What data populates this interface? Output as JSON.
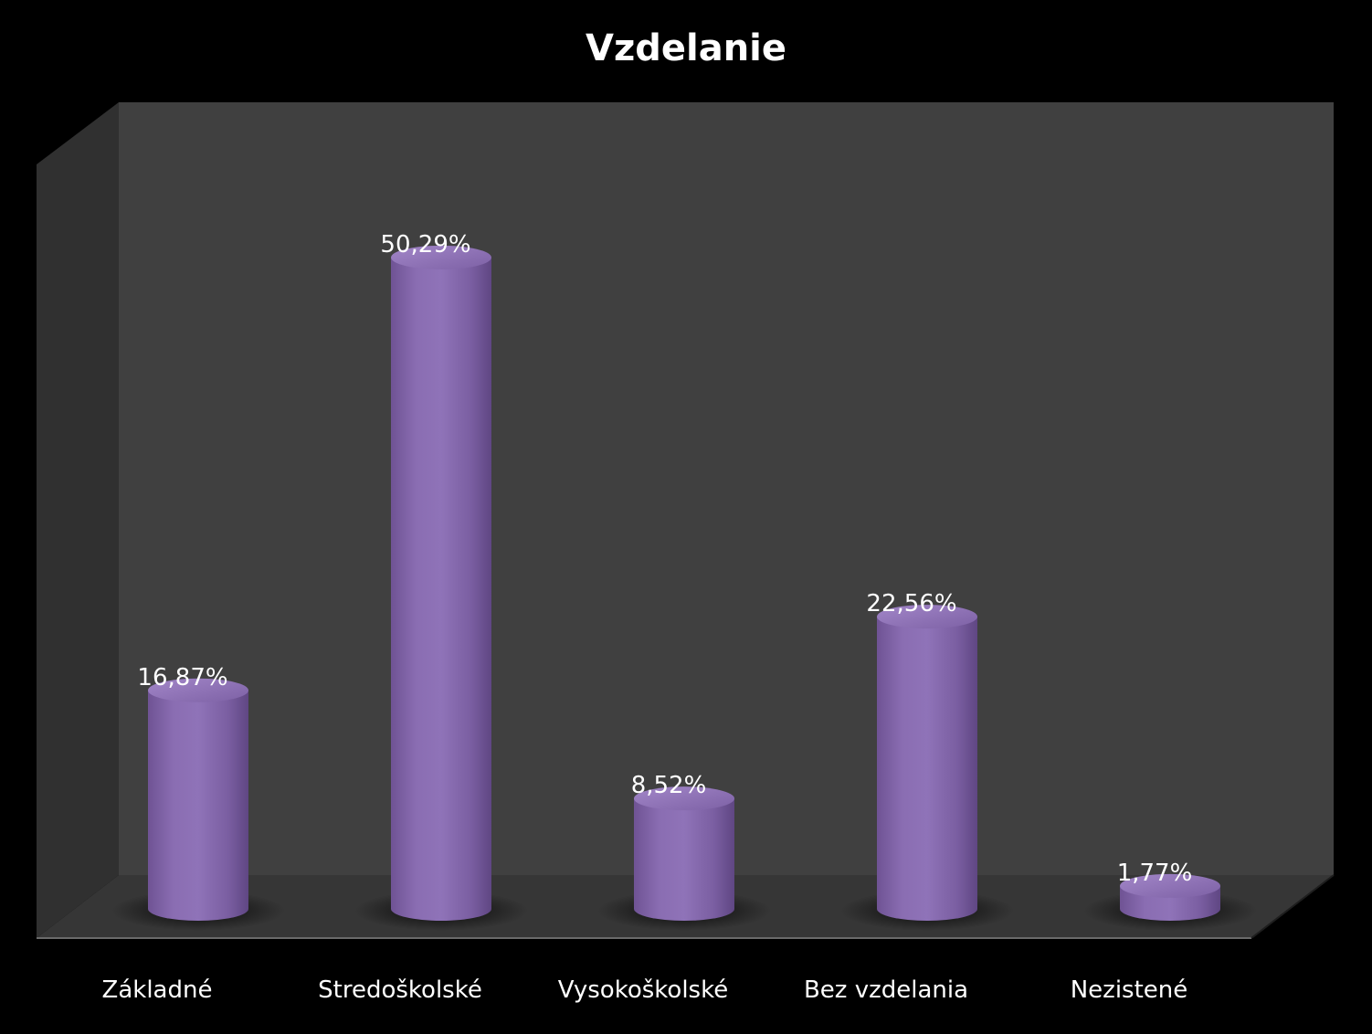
{
  "chart_data": {
    "type": "bar",
    "title": "Vzdelanie",
    "categories": [
      "Základné",
      "Stredoškolské",
      "Vysokoškolské",
      "Bez vzdelania",
      "Nezistené"
    ],
    "values": [
      16.87,
      50.29,
      8.52,
      22.56,
      1.77
    ],
    "value_labels": [
      "16,87%",
      "50,29%",
      "8,52%",
      "22,56%",
      "1,77%"
    ],
    "unit": "%",
    "ylim": [
      0,
      55
    ],
    "grid": false,
    "legend": "none",
    "bar_shape": "cylinder",
    "colors": {
      "background": "#000000",
      "wall": "#404040",
      "side_wall": "#303030",
      "floor": "#353535",
      "bar": "#8567ad",
      "text": "#ffffff"
    }
  }
}
